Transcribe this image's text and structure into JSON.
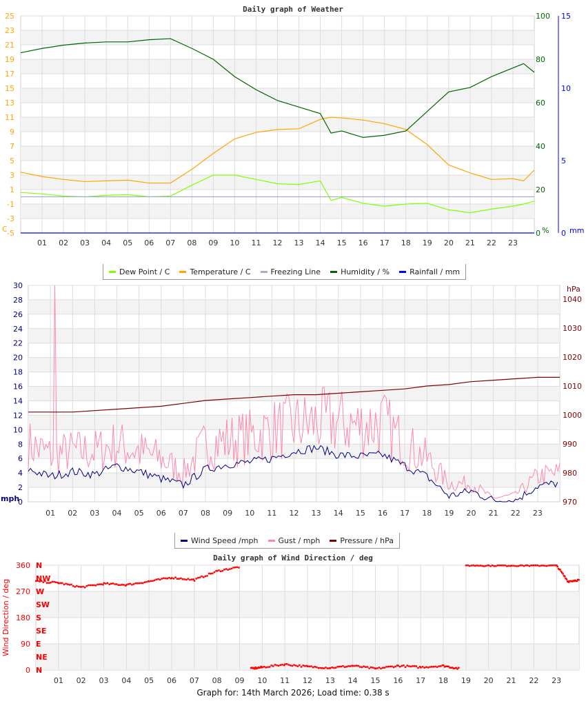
{
  "weather": {
    "title": "Daily graph of Weather",
    "legend": [
      {
        "label": "Dew Point / C",
        "color": "#80ff00"
      },
      {
        "label": "Temperature / C",
        "color": "#ffa500"
      },
      {
        "label": "Freezing Line",
        "color": "#a0b0cc"
      },
      {
        "label": "Humidity / %",
        "color": "#006400"
      },
      {
        "label": "Rainfall / mm",
        "color": "#0000ff"
      }
    ]
  },
  "wind": {
    "legend": [
      {
        "label": "Wind Speed /mph",
        "color": "#000080"
      },
      {
        "label": "Gust / mph",
        "color": "#ff88aa"
      },
      {
        "label": "Pressure / hPa",
        "color": "#800000"
      }
    ]
  },
  "winddir": {
    "title": "Daily graph of Wind Direction / deg"
  },
  "footer": "Graph for: 14th March 2026; Load time: 0.38 s",
  "chart_data": [
    {
      "type": "line",
      "title": "Daily graph of Weather",
      "x_ticks": [
        "01",
        "02",
        "03",
        "04",
        "05",
        "06",
        "07",
        "08",
        "09",
        "10",
        "11",
        "12",
        "13",
        "14",
        "15",
        "16",
        "17",
        "18",
        "19",
        "20",
        "21",
        "22",
        "23"
      ],
      "y_left": {
        "unit": "C",
        "range": [
          -5,
          25
        ],
        "ticks": [
          25,
          23,
          21,
          19,
          17,
          15,
          13,
          11,
          9,
          7,
          5,
          3,
          1,
          -1,
          -3,
          -5
        ],
        "color": "#ffa500"
      },
      "y_right": {
        "unit": "%",
        "range": [
          0,
          100
        ],
        "ticks": [
          100,
          80,
          60,
          40,
          20,
          0
        ],
        "color": "#006400"
      },
      "y_right2": {
        "unit": "mm",
        "range": [
          0,
          15
        ],
        "ticks": [
          15,
          10,
          5,
          0
        ],
        "color": "#0000ff"
      },
      "x_hours": [
        0,
        1,
        2,
        3,
        4,
        5,
        6,
        7,
        8,
        9,
        10,
        11,
        12,
        13,
        14,
        14.5,
        15,
        16,
        17,
        18,
        19,
        20,
        21,
        22,
        23,
        23.5,
        24
      ],
      "series": [
        {
          "name": "Temperature / C",
          "axis": "left",
          "color": "#ffa500",
          "values": [
            3.4,
            2.8,
            2.4,
            2.1,
            2.2,
            2.3,
            1.9,
            1.9,
            3.8,
            6.0,
            8.0,
            8.9,
            9.3,
            9.4,
            10.7,
            11.0,
            10.9,
            10.6,
            10.1,
            9.3,
            7.2,
            4.4,
            3.3,
            2.4,
            2.5,
            2.2,
            3.7
          ]
        },
        {
          "name": "Dew Point / C",
          "axis": "left",
          "color": "#80ff00",
          "values": [
            0.6,
            0.4,
            0.1,
            0.0,
            0.2,
            0.3,
            0.0,
            0.1,
            1.6,
            3.0,
            3.0,
            2.4,
            1.8,
            1.7,
            2.2,
            -0.5,
            -0.1,
            -0.9,
            -1.3,
            -1.0,
            -0.9,
            -1.8,
            -2.2,
            -1.7,
            -1.3,
            -1.0,
            -0.6
          ]
        },
        {
          "name": "Freezing Line",
          "axis": "left",
          "color": "#a0b0cc",
          "values": [
            0,
            0,
            0,
            0,
            0,
            0,
            0,
            0,
            0,
            0,
            0,
            0,
            0,
            0,
            0,
            0,
            0,
            0,
            0,
            0,
            0,
            0,
            0,
            0,
            0,
            0,
            0
          ]
        },
        {
          "name": "Humidity / %",
          "axis": "right",
          "color": "#006400",
          "values": [
            83,
            85,
            86.5,
            87.5,
            88,
            88,
            89,
            89.5,
            85,
            80,
            72,
            66,
            61,
            58,
            55,
            46,
            47,
            44,
            45,
            47,
            56,
            65,
            67,
            72,
            76,
            78,
            74
          ]
        },
        {
          "name": "Rainfall / mm",
          "axis": "right2",
          "color": "#0000ff",
          "values": [
            0,
            0,
            0,
            0,
            0,
            0,
            0,
            0,
            0,
            0,
            0,
            0,
            0,
            0,
            0,
            0,
            0,
            0,
            0,
            0,
            0,
            0,
            0,
            0,
            0,
            0,
            0
          ]
        }
      ]
    },
    {
      "type": "line",
      "x_ticks": [
        "01",
        "02",
        "03",
        "04",
        "05",
        "06",
        "07",
        "08",
        "09",
        "10",
        "11",
        "12",
        "13",
        "14",
        "15",
        "16",
        "17",
        "18",
        "19",
        "20",
        "21",
        "22",
        "23"
      ],
      "y_left": {
        "unit": "mph",
        "range": [
          0,
          30
        ],
        "ticks": [
          30,
          28,
          26,
          24,
          22,
          20,
          18,
          16,
          14,
          12,
          10,
          8,
          6,
          4,
          2,
          0
        ],
        "color": "#000080"
      },
      "y_right": {
        "unit": "hPa",
        "range": [
          970,
          1045
        ],
        "ticks": [
          1040,
          1030,
          1020,
          1010,
          1000,
          990,
          980,
          970
        ],
        "color": "#800000"
      },
      "x_hours": [
        0,
        1,
        2,
        3,
        4,
        5,
        6,
        7,
        8,
        9,
        10,
        11,
        12,
        13,
        14,
        15,
        16,
        17,
        18,
        19,
        20,
        21,
        22,
        23,
        24
      ],
      "series": [
        {
          "name": "Wind Speed /mph",
          "axis": "left",
          "color": "#000080",
          "values": [
            4.5,
            3.5,
            4.2,
            3.8,
            5,
            4.2,
            3.2,
            2.3,
            4.5,
            5.2,
            5.5,
            6,
            7,
            7.5,
            6.5,
            6.3,
            6.5,
            5,
            3.5,
            0.8,
            1.5,
            0.2,
            0.2,
            2.2,
            2.6
          ]
        },
        {
          "name": "Gust / mph",
          "axis": "left",
          "color": "#ff88aa",
          "values": [
            8,
            6.5,
            7,
            7,
            8,
            7,
            6,
            4,
            8,
            8.5,
            9,
            10,
            10.5,
            11,
            11,
            10.5,
            11,
            8,
            6,
            2.5,
            2.5,
            0.5,
            1,
            3.5,
            4
          ],
          "peak": {
            "hour": 1.2,
            "value": 30
          }
        },
        {
          "name": "Pressure / hPa",
          "axis": "right",
          "color": "#800000",
          "values": [
            1001,
            1001,
            1001,
            1001.5,
            1002,
            1002.5,
            1003,
            1004,
            1005,
            1005.5,
            1006,
            1006.5,
            1007,
            1007,
            1007.5,
            1008,
            1008.5,
            1009,
            1010,
            1010.5,
            1011.5,
            1012,
            1012.5,
            1013,
            1013
          ]
        }
      ]
    },
    {
      "type": "scatter",
      "title": "Daily graph of Wind Direction / deg",
      "ylabel": "Wind Direction / deg",
      "x_ticks": [
        "01",
        "02",
        "03",
        "04",
        "05",
        "06",
        "07",
        "08",
        "09",
        "10",
        "11",
        "12",
        "13",
        "14",
        "15",
        "16",
        "17",
        "18",
        "19",
        "20",
        "21",
        "22",
        "23"
      ],
      "y_left": {
        "range": [
          0,
          360
        ],
        "ticks": [
          360,
          270,
          180,
          90,
          0
        ],
        "color": "#ff0000"
      },
      "compass": [
        "N",
        "NW",
        "W",
        "SW",
        "S",
        "SE",
        "E",
        "NE",
        "N"
      ],
      "x_hours": [
        0,
        1,
        2,
        3,
        4,
        5,
        6,
        7,
        8,
        9,
        9.5,
        10,
        11,
        12,
        13,
        14,
        15,
        16,
        17,
        18,
        18.7,
        19,
        20,
        21,
        22,
        23,
        23.5,
        24
      ],
      "values": [
        305,
        300,
        285,
        297,
        293,
        305,
        318,
        310,
        340,
        355,
        5,
        10,
        20,
        12,
        8,
        15,
        5,
        15,
        10,
        15,
        5,
        360,
        360,
        360,
        360,
        360,
        305,
        310
      ]
    }
  ]
}
